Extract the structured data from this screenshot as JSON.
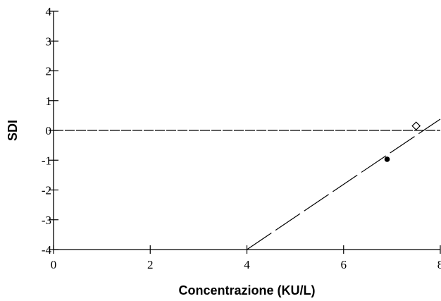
{
  "chart_data": {
    "type": "scatter",
    "title": "",
    "xlabel": "Concentrazione (KU/L)",
    "ylabel": "SDI",
    "xlim": [
      0,
      8
    ],
    "ylim": [
      -4,
      4
    ],
    "x_ticks": [
      "0",
      "2",
      "4",
      "6",
      "8"
    ],
    "y_ticks": [
      "4",
      "3",
      "2",
      "1",
      "0",
      "-1",
      "-2",
      "-3",
      "-4"
    ],
    "grid": false,
    "legend": "none",
    "reference_line": {
      "y": 0,
      "style": "dashed"
    },
    "regression_line": {
      "points": [
        [
          4.0,
          -4.0
        ],
        [
          8.0,
          0.38
        ]
      ],
      "style": "long-dash"
    },
    "points": [
      {
        "x": 7.5,
        "y": 0.15,
        "marker": "open-diamond"
      },
      {
        "x": 6.9,
        "y": -0.97,
        "marker": "filled-circle"
      }
    ]
  }
}
